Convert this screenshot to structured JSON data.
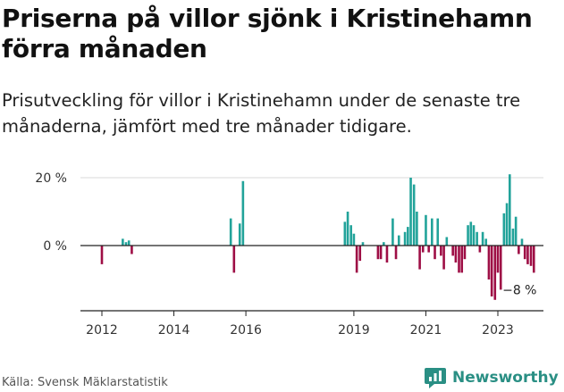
{
  "colors": {
    "positive": "#22a39a",
    "negative": "#9e0e45",
    "grid": "#d9d9d9",
    "axis": "#222222",
    "logo": "#2a8f84"
  },
  "source": "Källa: Svensk Mäklarstatistik",
  "logo": {
    "text": "Newsworthy",
    "icon": "newsworthy-chart-icon"
  },
  "chart_data": {
    "type": "bar",
    "title": "Priserna på villor sjönk i Kristinehamn förra månaden",
    "subtitle": "Prisutveckling för villor i Kristinehamn under de senaste tre månaderna, jämfört med tre månader tidigare.",
    "xlabel": "",
    "ylabel": "",
    "ylim": [
      -19,
      20
    ],
    "xlim": [
      2011.2,
      2024.6
    ],
    "grid": true,
    "y_ticks": [
      {
        "value": 0,
        "label": "0 %"
      },
      {
        "value": 20,
        "label": "20 %"
      }
    ],
    "x_ticks": [
      {
        "value": 2012,
        "label": "2012"
      },
      {
        "value": 2014,
        "label": "2014"
      },
      {
        "value": 2016,
        "label": "2016"
      },
      {
        "value": 2019,
        "label": "2019"
      },
      {
        "value": 2021,
        "label": "2021"
      },
      {
        "value": 2023,
        "label": "2023"
      }
    ],
    "annotation": {
      "label": "−8 %",
      "x": 2024.08,
      "y": -8
    },
    "x": [
      2012.0,
      2012.58,
      2012.67,
      2012.75,
      2012.83,
      2015.58,
      2015.67,
      2015.83,
      2015.92,
      2018.75,
      2018.83,
      2018.92,
      2019.0,
      2019.08,
      2019.17,
      2019.25,
      2019.67,
      2019.75,
      2019.83,
      2019.92,
      2020.08,
      2020.17,
      2020.25,
      2020.42,
      2020.5,
      2020.58,
      2020.67,
      2020.75,
      2020.83,
      2020.92,
      2021.0,
      2021.08,
      2021.17,
      2021.25,
      2021.33,
      2021.42,
      2021.5,
      2021.58,
      2021.75,
      2021.83,
      2021.92,
      2022.0,
      2022.08,
      2022.17,
      2022.25,
      2022.33,
      2022.42,
      2022.5,
      2022.58,
      2022.67,
      2022.75,
      2022.83,
      2022.92,
      2023.0,
      2023.08,
      2023.17,
      2023.25,
      2023.33,
      2023.42,
      2023.5,
      2023.58,
      2023.67,
      2023.75,
      2023.83,
      2023.92,
      2024.0
    ],
    "values": [
      -5.5,
      2,
      1,
      1.5,
      -2.5,
      8,
      -8,
      6.5,
      19,
      7,
      10,
      6,
      3.5,
      -8,
      -4.5,
      1,
      -4,
      -4,
      1,
      -5,
      8,
      -4,
      3,
      4,
      5.5,
      20,
      18,
      10,
      -7,
      -2,
      9,
      -2,
      8,
      -4,
      8,
      -3,
      -7,
      2.5,
      -3,
      -5,
      -8,
      -8,
      -4,
      6,
      7,
      6,
      4,
      -2,
      4,
      2,
      -10,
      -15,
      -16,
      -8,
      -13,
      9.5,
      12.5,
      21,
      5,
      8.5,
      -2.5,
      2,
      -4,
      -5.5,
      -6,
      -8
    ]
  }
}
